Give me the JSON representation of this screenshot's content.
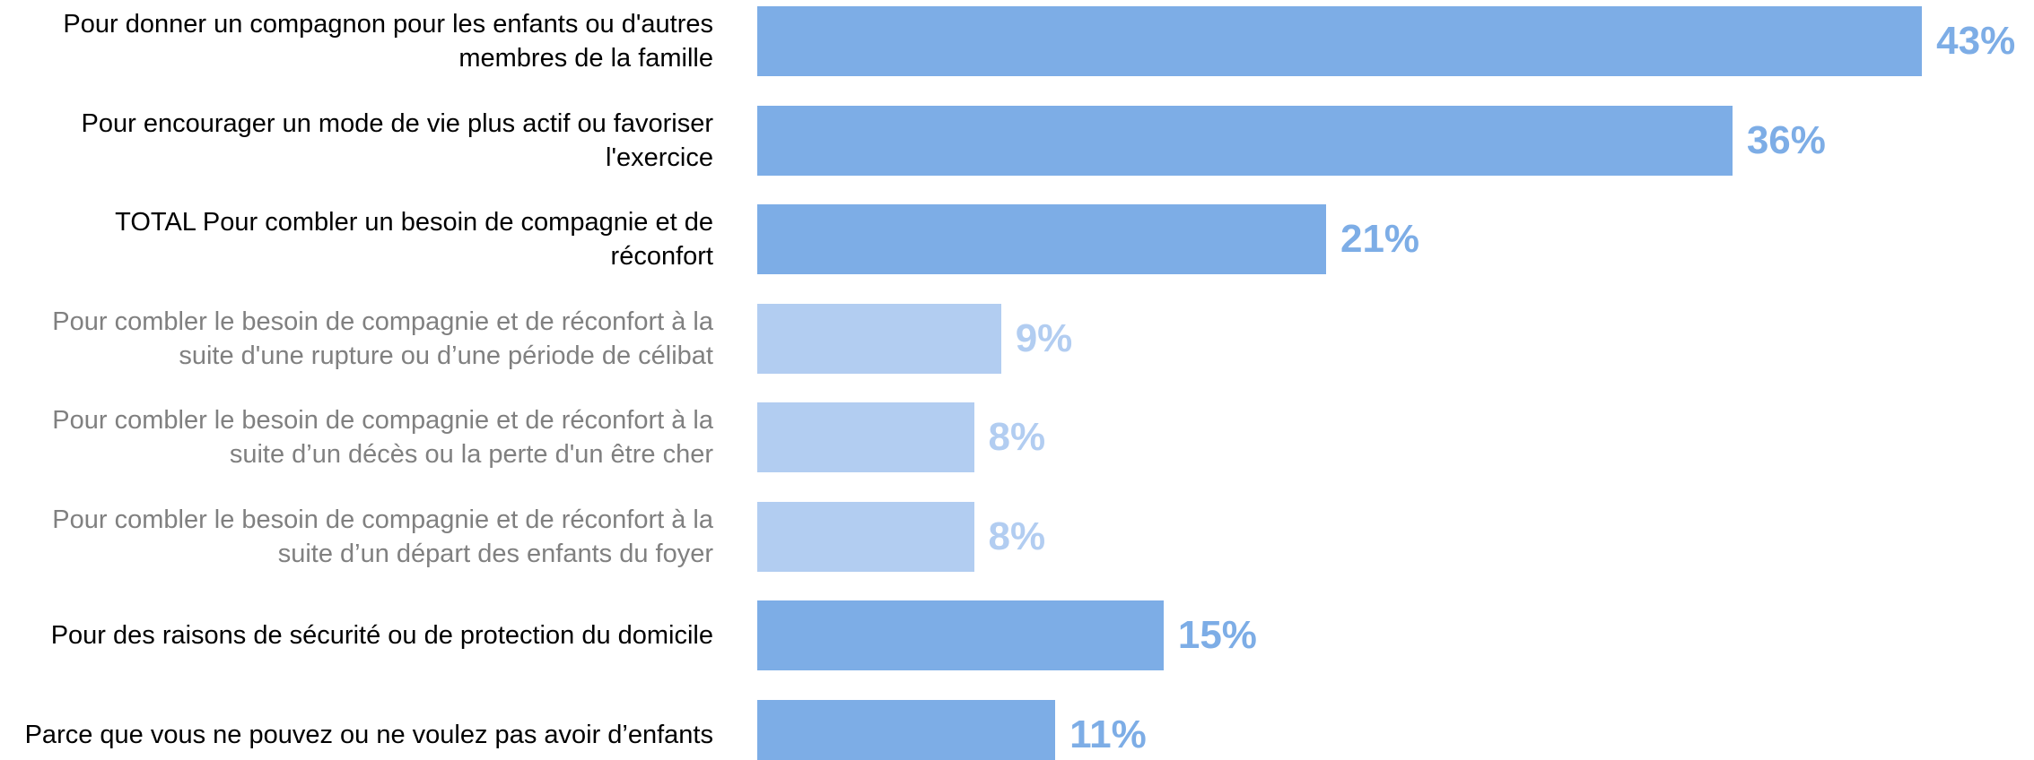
{
  "chart_data": {
    "type": "bar",
    "orientation": "horizontal",
    "categories": [
      "Pour donner un compagnon pour les enfants ou d'autres membres de la famille",
      "Pour encourager un mode de vie plus actif ou favoriser l'exercice",
      "TOTAL Pour combler un besoin de compagnie et de réconfort",
      "Pour combler le besoin de compagnie et de réconfort à la suite d'une rupture ou d’une période de célibat",
      "Pour combler le besoin de compagnie et de réconfort à la suite d’un décès ou la perte d'un être cher",
      "Pour combler le besoin de compagnie et de réconfort à la suite d’un départ des enfants du foyer",
      "Pour des raisons de sécurité ou de protection du domicile",
      "Parce que vous ne pouvez ou ne voulez pas avoir d’enfants"
    ],
    "values": [
      43,
      36,
      21,
      9,
      8,
      8,
      15,
      11
    ],
    "value_labels": [
      "43%",
      "36%",
      "21%",
      "9%",
      "8%",
      "8%",
      "15%",
      "11%"
    ],
    "colors": [
      "#7dade6",
      "#7dade6",
      "#7dade6",
      "#b2cdf1",
      "#b2cdf1",
      "#b2cdf1",
      "#7dade6",
      "#7dade6"
    ],
    "label_colors": [
      "#000000",
      "#000000",
      "#000000",
      "#808080",
      "#808080",
      "#808080",
      "#000000",
      "#000000"
    ]
  }
}
